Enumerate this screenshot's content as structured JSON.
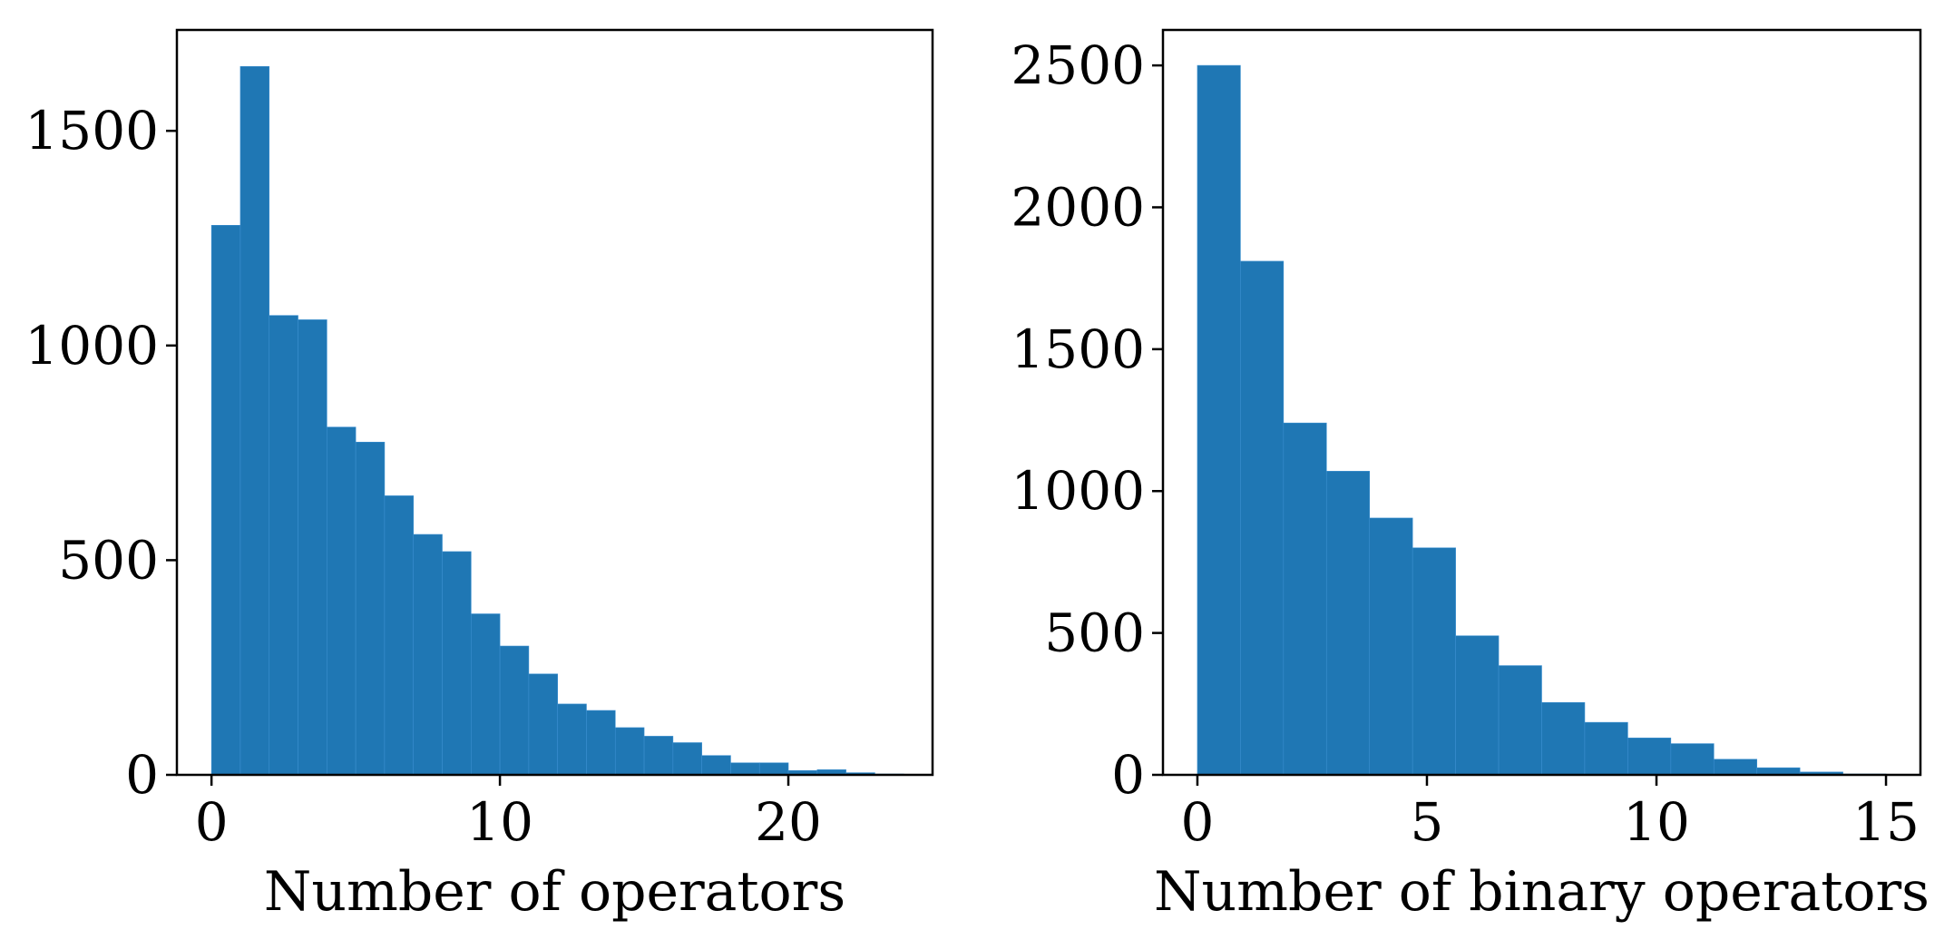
{
  "chart_data": [
    {
      "type": "bar",
      "xlabel": "Number of operators",
      "ylabel": "",
      "bin_width": 1,
      "x_start": 0,
      "values": [
        1280,
        1650,
        1070,
        1060,
        810,
        775,
        650,
        560,
        520,
        375,
        300,
        235,
        165,
        150,
        110,
        90,
        75,
        45,
        28,
        28,
        10,
        12,
        5,
        2
      ],
      "xlim": [
        -1.2,
        25
      ],
      "ylim": [
        0,
        1735
      ],
      "xticks": [
        0,
        10,
        20
      ],
      "yticks": [
        0,
        500,
        1000,
        1500
      ],
      "color": "#1f77b4",
      "grid": false,
      "legend": false
    },
    {
      "type": "bar",
      "xlabel": "Number of binary operators",
      "ylabel": "",
      "bin_width": 0.9375,
      "x_start": 0,
      "values": [
        2500,
        1810,
        1240,
        1070,
        905,
        800,
        490,
        385,
        255,
        185,
        130,
        110,
        55,
        25,
        10,
        3
      ],
      "xlim": [
        -0.75,
        15.75
      ],
      "ylim": [
        0,
        2625
      ],
      "xticks": [
        0,
        5,
        10,
        15
      ],
      "yticks": [
        0,
        500,
        1000,
        1500,
        2000,
        2500
      ],
      "color": "#1f77b4",
      "grid": false,
      "legend": false
    }
  ]
}
